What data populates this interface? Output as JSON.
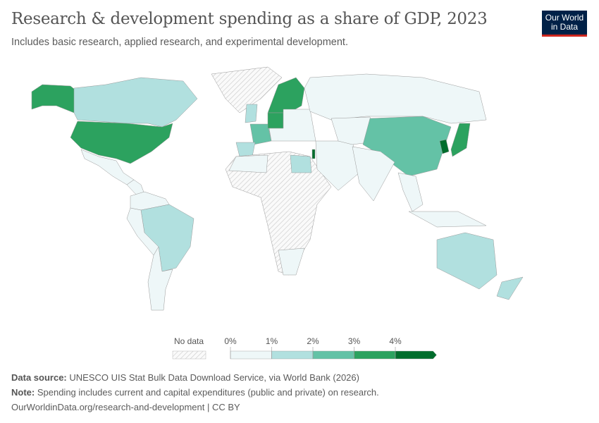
{
  "header": {
    "title": "Research & development spending as a share of GDP, 2023",
    "subtitle": "Includes basic research, applied research, and experimental development.",
    "logo": "Our World in Data"
  },
  "legend": {
    "no_data_label": "No data",
    "ticks": [
      "0%",
      "1%",
      "2%",
      "3%",
      "4%"
    ],
    "bins": [
      "0–1%",
      "1–2%",
      "2–3%",
      "3–4%",
      ">4%"
    ],
    "colors": [
      "#eef7f8",
      "#b1e0df",
      "#64c2a6",
      "#2ca25f",
      "#006d2c"
    ],
    "no_data_color": "#e0e0e0"
  },
  "map": {
    "regions": [
      {
        "name": "alaska-us",
        "cat": 3
      },
      {
        "name": "canada",
        "cat": 1
      },
      {
        "name": "united-states",
        "cat": 3
      },
      {
        "name": "mexico",
        "cat": 0
      },
      {
        "name": "central-america",
        "cat": 0
      },
      {
        "name": "greenland",
        "cat": -1
      },
      {
        "name": "brazil",
        "cat": 1
      },
      {
        "name": "northern-south-america",
        "cat": 0
      },
      {
        "name": "peru-bolivia",
        "cat": 0
      },
      {
        "name": "argentina-chile",
        "cat": 0
      },
      {
        "name": "scandinavia",
        "cat": 3
      },
      {
        "name": "united-kingdom",
        "cat": 1
      },
      {
        "name": "france",
        "cat": 2
      },
      {
        "name": "germany",
        "cat": 3
      },
      {
        "name": "spain",
        "cat": 1
      },
      {
        "name": "eastern-europe",
        "cat": 0
      },
      {
        "name": "russia",
        "cat": 0
      },
      {
        "name": "africa",
        "cat": -1
      },
      {
        "name": "egypt",
        "cat": 1
      },
      {
        "name": "north-africa-west",
        "cat": 0
      },
      {
        "name": "south-africa",
        "cat": 0
      },
      {
        "name": "middle-east",
        "cat": 0
      },
      {
        "name": "central-asia",
        "cat": 0
      },
      {
        "name": "china",
        "cat": 2
      },
      {
        "name": "india",
        "cat": 0
      },
      {
        "name": "southeast-asia",
        "cat": 0
      },
      {
        "name": "indonesia",
        "cat": 0
      },
      {
        "name": "japan",
        "cat": 3
      },
      {
        "name": "south-korea",
        "cat": 4
      },
      {
        "name": "israel",
        "cat": 4
      },
      {
        "name": "australia",
        "cat": 1
      },
      {
        "name": "new-zealand",
        "cat": 1
      }
    ]
  },
  "footer": {
    "source_label": "Data source:",
    "source": "UNESCO UIS Stat Bulk Data Download Service, via World Bank (2026)",
    "note_label": "Note:",
    "note": "Spending includes current and capital expenditures (public and private) on research.",
    "url": "OurWorldinData.org/research-and-development | CC BY"
  }
}
